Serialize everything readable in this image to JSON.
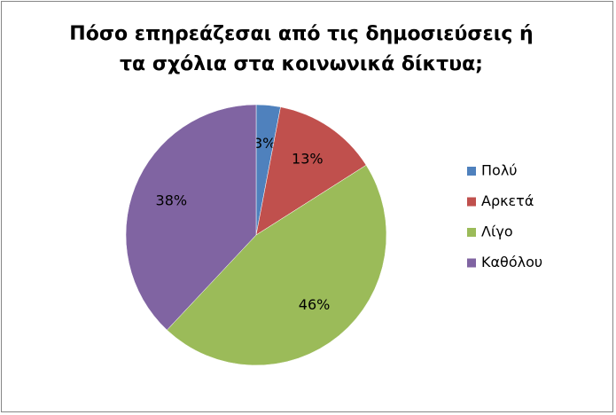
{
  "chart_data": {
    "type": "pie",
    "title": "Πόσο επηρεάζεσαι από τις δημοσιεύσεις ή τα σχόλια στα κοινωνικά δίκτυα;",
    "categories": [
      "Πολύ",
      "Αρκετά",
      "Λίγο",
      "Καθόλου"
    ],
    "values": [
      3,
      13,
      46,
      38
    ],
    "value_labels": [
      "3%",
      "13%",
      "46%",
      "38%"
    ],
    "colors": [
      "#4f81bd",
      "#c0504d",
      "#9bbb59",
      "#8064a2"
    ],
    "legend": "right"
  }
}
